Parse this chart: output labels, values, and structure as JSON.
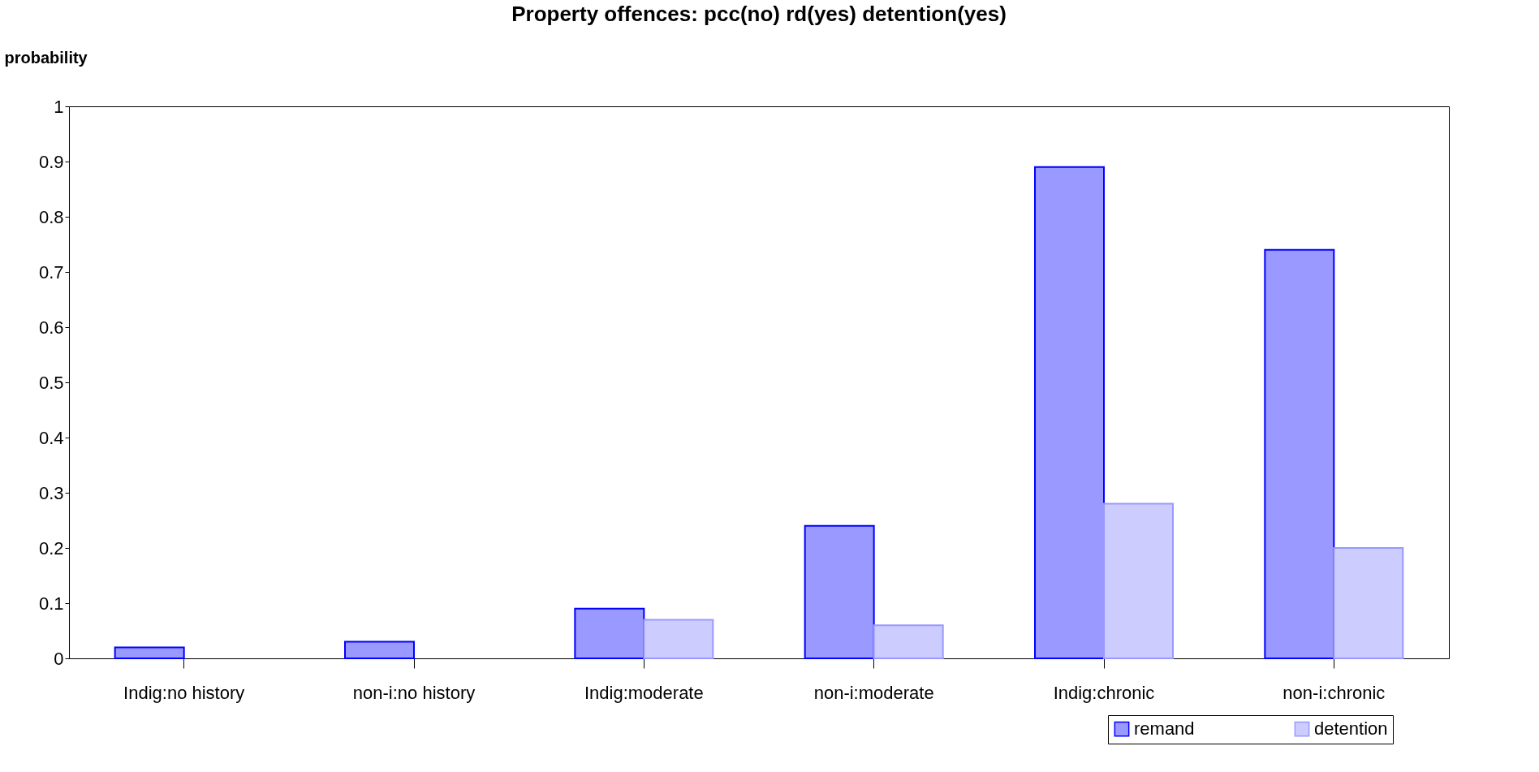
{
  "chart_data": {
    "type": "bar",
    "title": "Property offences: pcc(no) rd(yes) detention(yes)",
    "ylabel": "probability",
    "categories": [
      "Indig:no history",
      "non-i:no history",
      "Indig:moderate",
      "non-i:moderate",
      "Indig:chronic",
      "non-i:chronic"
    ],
    "series": [
      {
        "name": "remand",
        "color": "#9999ff",
        "values": [
          0.02,
          0.03,
          0.09,
          0.24,
          0.89,
          0.74
        ]
      },
      {
        "name": "detention",
        "color": "#ccccff",
        "values": [
          null,
          null,
          0.07,
          0.06,
          0.28,
          0.2
        ]
      }
    ],
    "ylim": [
      0,
      1
    ],
    "yticks": [
      0,
      0.1,
      0.2,
      0.3,
      0.4,
      0.5,
      0.6,
      0.7,
      0.8,
      0.9,
      1
    ],
    "grid": false,
    "legend": "bottom right"
  }
}
